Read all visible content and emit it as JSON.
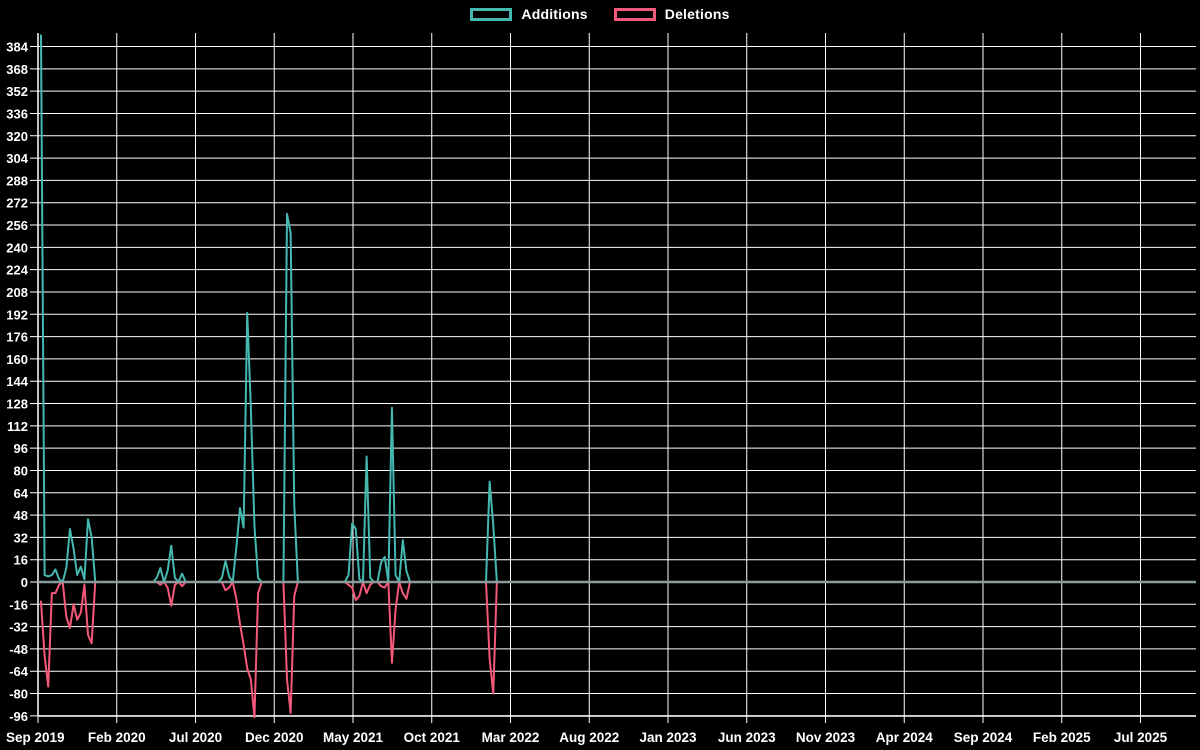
{
  "legend": {
    "items": [
      {
        "label": "Additions",
        "color": "#45b8b0"
      },
      {
        "label": "Deletions",
        "color": "#f4587a"
      }
    ]
  },
  "chart_data": {
    "type": "line",
    "title": "",
    "xlabel": "",
    "ylabel": "",
    "background_color": "#000000",
    "grid": true,
    "grid_color": "#ffffff",
    "zero_line_color": "#8a9b9b",
    "text_color": "#ffffff",
    "legend_position": "top-center",
    "y_axis": {
      "min": -96,
      "max": 384,
      "tick_step": 16,
      "tick_labels": [
        "384",
        "368",
        "352",
        "336",
        "320",
        "304",
        "288",
        "272",
        "256",
        "240",
        "224",
        "208",
        "192",
        "176",
        "160",
        "144",
        "128",
        "112",
        "96",
        "80",
        "64",
        "48",
        "32",
        "16",
        "0",
        "-16",
        "-32",
        "-48",
        "-64",
        "-80",
        "-96"
      ]
    },
    "x_axis": {
      "unit": "weeks",
      "tick_labels": [
        "Sep 2019",
        "Feb 2020",
        "Jul 2020",
        "Dec 2020",
        "May 2021",
        "Oct 2021",
        "Mar 2022",
        "Aug 2022",
        "Jan 2023",
        "Jun 2023",
        "Nov 2023",
        "Apr 2024",
        "Sep 2024",
        "Feb 2025",
        "Jul 2025"
      ]
    },
    "total_weeks": 320,
    "series": [
      {
        "name": "Additions",
        "color": "#45b8b0",
        "points": [
          [
            0,
            392
          ],
          [
            1,
            5
          ],
          [
            2,
            4
          ],
          [
            3,
            5
          ],
          [
            4,
            9
          ],
          [
            5,
            2
          ],
          [
            7,
            10
          ],
          [
            8,
            38
          ],
          [
            9,
            24
          ],
          [
            10,
            5
          ],
          [
            11,
            11
          ],
          [
            12,
            2
          ],
          [
            13,
            45
          ],
          [
            14,
            32
          ],
          [
            32,
            3
          ],
          [
            33,
            10
          ],
          [
            35,
            8
          ],
          [
            36,
            26
          ],
          [
            37,
            3
          ],
          [
            39,
            6
          ],
          [
            50,
            3
          ],
          [
            51,
            15
          ],
          [
            52,
            4
          ],
          [
            54,
            25
          ],
          [
            55,
            53
          ],
          [
            56,
            39
          ],
          [
            57,
            193
          ],
          [
            58,
            125
          ],
          [
            59,
            40
          ],
          [
            60,
            3
          ],
          [
            68,
            264
          ],
          [
            69,
            250
          ],
          [
            70,
            55
          ],
          [
            85,
            5
          ],
          [
            86,
            42
          ],
          [
            87,
            38
          ],
          [
            88,
            2
          ],
          [
            90,
            90
          ],
          [
            91,
            3
          ],
          [
            94,
            14
          ],
          [
            95,
            18
          ],
          [
            97,
            125
          ],
          [
            98,
            5
          ],
          [
            100,
            30
          ],
          [
            101,
            8
          ],
          [
            124,
            72
          ],
          [
            125,
            41
          ]
        ]
      },
      {
        "name": "Deletions",
        "color": "#f4587a",
        "points": [
          [
            0,
            -14
          ],
          [
            1,
            -53
          ],
          [
            2,
            -75
          ],
          [
            3,
            -8
          ],
          [
            4,
            -8
          ],
          [
            5,
            -2
          ],
          [
            7,
            -25
          ],
          [
            8,
            -33
          ],
          [
            9,
            -16
          ],
          [
            10,
            -27
          ],
          [
            11,
            -22
          ],
          [
            12,
            -2
          ],
          [
            13,
            -38
          ],
          [
            14,
            -44
          ],
          [
            33,
            -2
          ],
          [
            35,
            -4
          ],
          [
            36,
            -17
          ],
          [
            37,
            -2
          ],
          [
            39,
            -3
          ],
          [
            51,
            -6
          ],
          [
            52,
            -4
          ],
          [
            54,
            -12
          ],
          [
            55,
            -30
          ],
          [
            56,
            -45
          ],
          [
            57,
            -62
          ],
          [
            58,
            -70
          ],
          [
            59,
            -97
          ],
          [
            60,
            -8
          ],
          [
            68,
            -70
          ],
          [
            69,
            -94
          ],
          [
            70,
            -10
          ],
          [
            85,
            -2
          ],
          [
            86,
            -4
          ],
          [
            87,
            -13
          ],
          [
            88,
            -10
          ],
          [
            90,
            -8
          ],
          [
            91,
            -2
          ],
          [
            94,
            -3
          ],
          [
            95,
            -4
          ],
          [
            97,
            -58
          ],
          [
            98,
            -20
          ],
          [
            100,
            -8
          ],
          [
            101,
            -12
          ],
          [
            124,
            -55
          ],
          [
            125,
            -80
          ]
        ]
      }
    ]
  }
}
